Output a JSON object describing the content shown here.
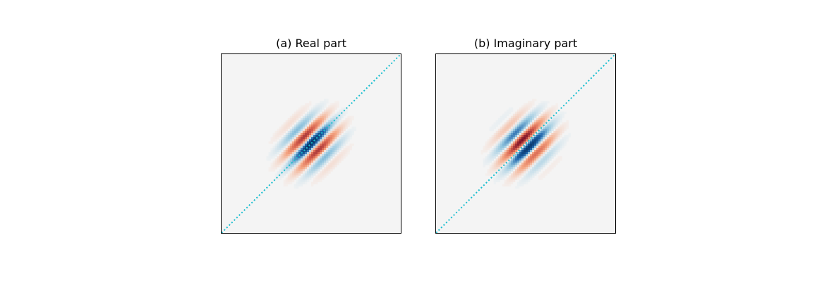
{
  "chart_data": [
    {
      "type": "heatmap",
      "title": "(a) Real part",
      "xlabel": "",
      "ylabel": "",
      "colormap": "RdBu",
      "background_color": "#f4f4f4",
      "diagonal_line": {
        "style": "dotted",
        "color": "#17becf"
      },
      "pattern": {
        "description_values": {
          "center": [
            0.5,
            0.5
          ],
          "peak_sign_at_center": -1,
          "fringe_period": 0.115,
          "envelope_sigma": 0.075
        },
        "values_range": [
          -1,
          1
        ]
      }
    },
    {
      "type": "heatmap",
      "title": "(b) Imaginary part",
      "xlabel": "",
      "ylabel": "",
      "colormap": "RdBu",
      "background_color": "#f4f4f4",
      "diagonal_line": {
        "style": "dotted",
        "color": "#17becf"
      },
      "pattern": {
        "description_values": {
          "center": [
            0.5,
            0.5
          ],
          "peak_sign_at_center": 0,
          "fringe_period": 0.115,
          "envelope_sigma": 0.075
        },
        "values_range": [
          -1,
          1
        ]
      }
    }
  ]
}
